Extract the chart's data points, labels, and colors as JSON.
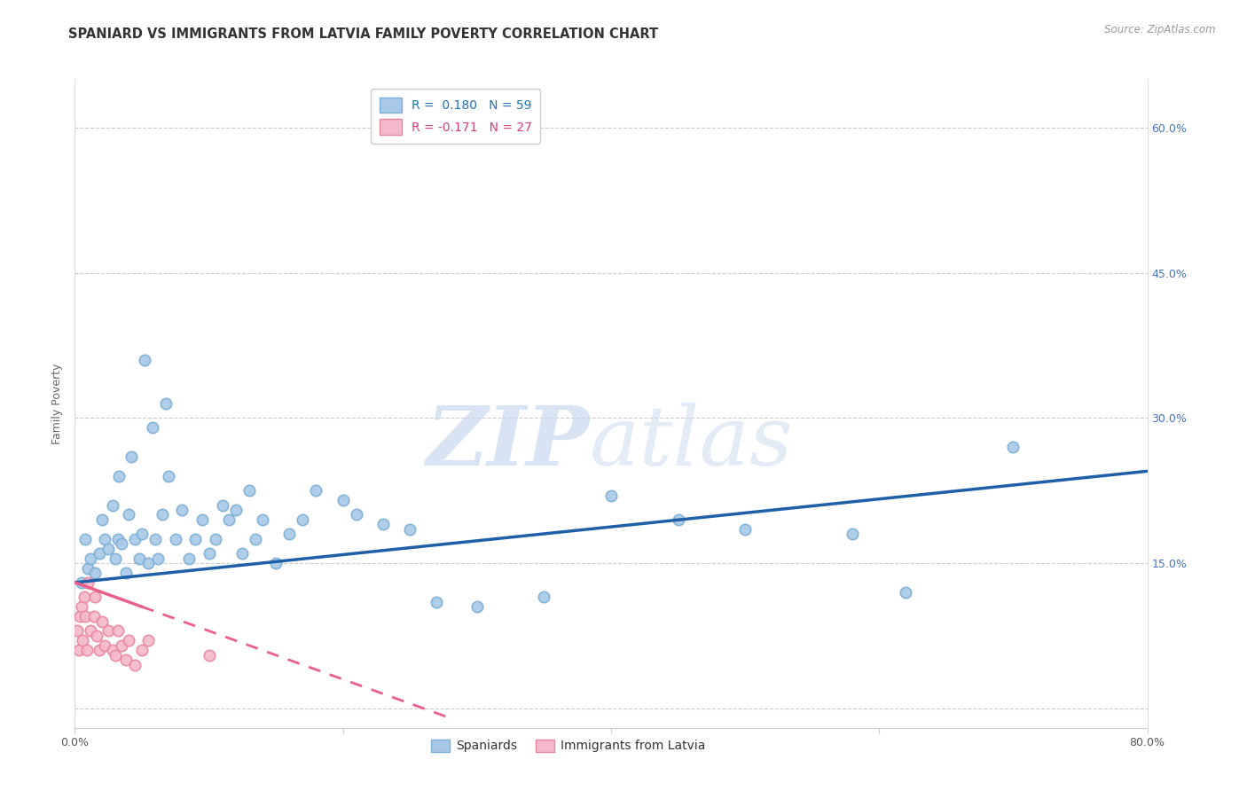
{
  "title": "SPANIARD VS IMMIGRANTS FROM LATVIA FAMILY POVERTY CORRELATION CHART",
  "source": "Source: ZipAtlas.com",
  "ylabel": "Family Poverty",
  "xmin": 0.0,
  "xmax": 0.8,
  "ymin": -0.02,
  "ymax": 0.65,
  "yticks": [
    0.0,
    0.15,
    0.3,
    0.45,
    0.6
  ],
  "ytick_labels_right": [
    "",
    "15.0%",
    "30.0%",
    "45.0%",
    "60.0%"
  ],
  "xticks": [
    0.0,
    0.2,
    0.4,
    0.6,
    0.8
  ],
  "xtick_labels": [
    "0.0%",
    "",
    "",
    "",
    "80.0%"
  ],
  "blue_color": "#a8c8e8",
  "blue_edge_color": "#7bafd4",
  "pink_color": "#f4b8cb",
  "pink_edge_color": "#e8869e",
  "blue_line_color": "#1e5fa8",
  "pink_line_color": "#e8608a",
  "r_blue": 0.18,
  "n_blue": 59,
  "r_pink": -0.171,
  "n_pink": 27,
  "legend_label_blue": "Spaniards",
  "legend_label_pink": "Immigrants from Latvia",
  "watermark_zip": "ZIP",
  "watermark_atlas": "atlas",
  "blue_scatter_x": [
    0.005,
    0.008,
    0.01,
    0.012,
    0.015,
    0.018,
    0.02,
    0.022,
    0.025,
    0.028,
    0.03,
    0.032,
    0.033,
    0.035,
    0.038,
    0.04,
    0.042,
    0.045,
    0.048,
    0.05,
    0.052,
    0.055,
    0.058,
    0.06,
    0.062,
    0.065,
    0.068,
    0.07,
    0.075,
    0.08,
    0.085,
    0.09,
    0.095,
    0.1,
    0.105,
    0.11,
    0.115,
    0.12,
    0.125,
    0.13,
    0.135,
    0.14,
    0.15,
    0.16,
    0.17,
    0.18,
    0.2,
    0.21,
    0.23,
    0.25,
    0.27,
    0.3,
    0.35,
    0.4,
    0.45,
    0.5,
    0.58,
    0.62,
    0.7
  ],
  "blue_scatter_y": [
    0.13,
    0.175,
    0.145,
    0.155,
    0.14,
    0.16,
    0.195,
    0.175,
    0.165,
    0.21,
    0.155,
    0.175,
    0.24,
    0.17,
    0.14,
    0.2,
    0.26,
    0.175,
    0.155,
    0.18,
    0.36,
    0.15,
    0.29,
    0.175,
    0.155,
    0.2,
    0.315,
    0.24,
    0.175,
    0.205,
    0.155,
    0.175,
    0.195,
    0.16,
    0.175,
    0.21,
    0.195,
    0.205,
    0.16,
    0.225,
    0.175,
    0.195,
    0.15,
    0.18,
    0.195,
    0.225,
    0.215,
    0.2,
    0.19,
    0.185,
    0.11,
    0.105,
    0.115,
    0.22,
    0.195,
    0.185,
    0.18,
    0.12,
    0.27
  ],
  "pink_scatter_x": [
    0.002,
    0.003,
    0.004,
    0.005,
    0.006,
    0.007,
    0.008,
    0.009,
    0.01,
    0.012,
    0.014,
    0.015,
    0.016,
    0.018,
    0.02,
    0.022,
    0.025,
    0.028,
    0.03,
    0.032,
    0.035,
    0.038,
    0.04,
    0.045,
    0.05,
    0.055,
    0.1
  ],
  "pink_scatter_y": [
    0.08,
    0.06,
    0.095,
    0.105,
    0.07,
    0.115,
    0.095,
    0.06,
    0.13,
    0.08,
    0.095,
    0.115,
    0.075,
    0.06,
    0.09,
    0.065,
    0.08,
    0.06,
    0.055,
    0.08,
    0.065,
    0.05,
    0.07,
    0.045,
    0.06,
    0.07,
    0.055
  ],
  "grid_color": "#cccccc",
  "background_color": "#ffffff",
  "title_fontsize": 10.5,
  "axis_label_fontsize": 9,
  "tick_fontsize": 9,
  "blue_trend_x0": 0.0,
  "blue_trend_y0": 0.13,
  "blue_trend_x1": 0.8,
  "blue_trend_y1": 0.245,
  "pink_trend_x0": 0.0,
  "pink_trend_y0": 0.13,
  "pink_trend_x1": 0.28,
  "pink_trend_y1": -0.01
}
